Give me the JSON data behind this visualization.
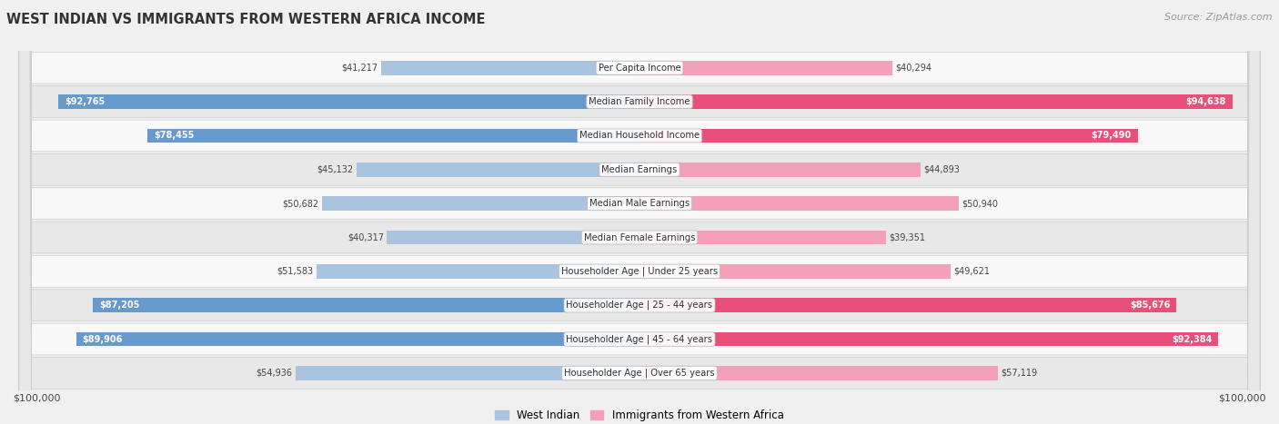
{
  "title": "WEST INDIAN VS IMMIGRANTS FROM WESTERN AFRICA INCOME",
  "source": "Source: ZipAtlas.com",
  "categories": [
    "Per Capita Income",
    "Median Family Income",
    "Median Household Income",
    "Median Earnings",
    "Median Male Earnings",
    "Median Female Earnings",
    "Householder Age | Under 25 years",
    "Householder Age | 25 - 44 years",
    "Householder Age | 45 - 64 years",
    "Householder Age | Over 65 years"
  ],
  "west_indian": [
    41217,
    92765,
    78455,
    45132,
    50682,
    40317,
    51583,
    87205,
    89906,
    54936
  ],
  "western_africa": [
    40294,
    94638,
    79490,
    44893,
    50940,
    39351,
    49621,
    85676,
    92384,
    57119
  ],
  "max_value": 100000,
  "west_indian_light": "#aac4e0",
  "western_africa_light": "#f4a0b8",
  "west_indian_dark": "#6699cc",
  "western_africa_dark": "#e8507a",
  "bg_color": "#f0f0f0",
  "row_bg_light": "#f8f8f8",
  "row_bg_dark": "#e8e8e8",
  "row_border": "#cccccc",
  "dark_threshold": 75000,
  "legend_wi": "West Indian",
  "legend_wa": "Immigrants from Western Africa"
}
